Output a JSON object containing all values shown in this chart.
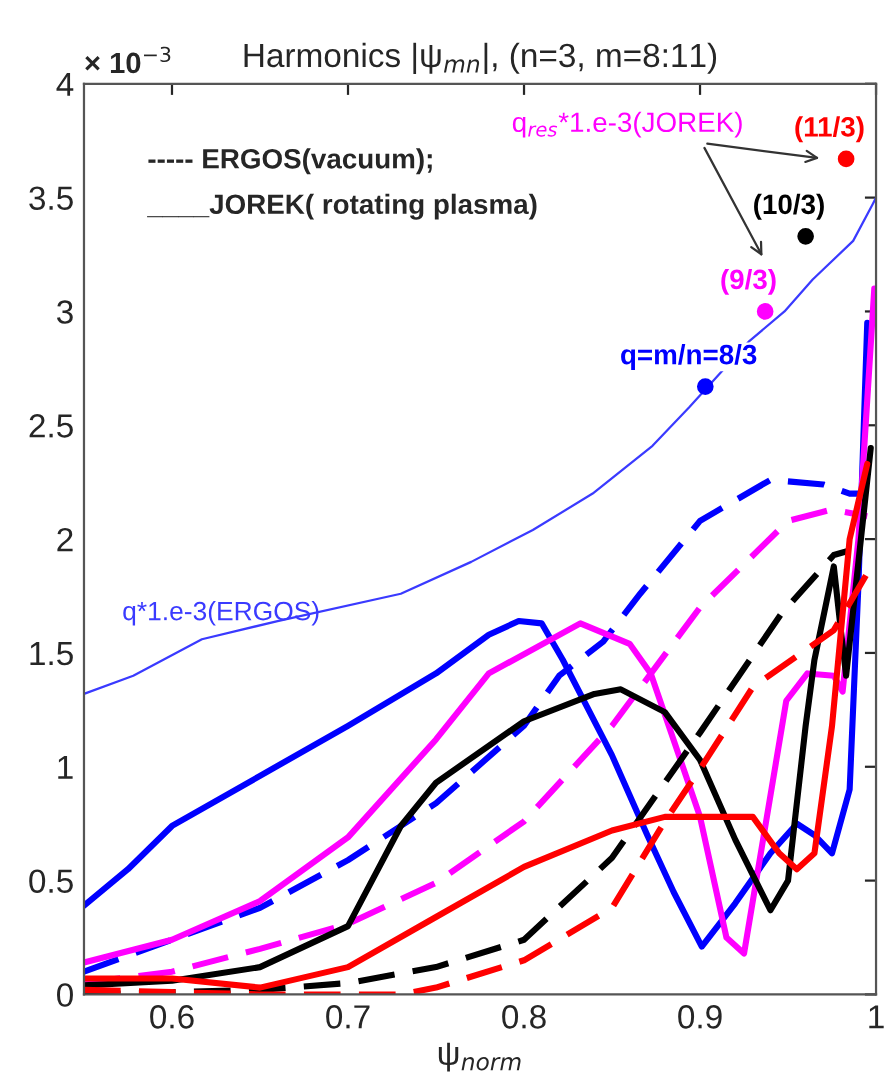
{
  "chart_data": {
    "type": "line",
    "title": "Harmonics |ψ$_{mn}$|, (n=3, m=8:11)",
    "xlabel": "ψ$_{norm}$",
    "xlim": [
      0.55,
      1.0
    ],
    "xticks": [
      0.6,
      0.7,
      0.8,
      0.9,
      {
        "value": 1.0,
        "label": "1"
      }
    ],
    "ylim": [
      0,
      4
    ],
    "yticks": [
      0,
      0.5,
      1,
      1.5,
      2,
      2.5,
      3,
      3.5,
      4
    ],
    "grid": false,
    "legend": false,
    "annotations": [
      "× 10$^{−3}$",
      "----- ERGOS(vacuum);",
      "____JOREK( rotating plasma)",
      "q$_{res}$*1.e-3(JOREK)"
    ],
    "series": [
      {
        "name": "q*1.e-3(ERGOS)",
        "color": "#3a3aff",
        "line_style": "solid",
        "x": [
          0.55,
          0.578,
          0.617,
          0.66,
          0.73,
          0.77,
          0.805,
          0.839,
          0.873,
          0.894,
          0.928,
          0.948,
          0.964,
          0.987,
          0.998,
          1.0
        ],
        "values": [
          1.32,
          1.4,
          1.56,
          1.64,
          1.76,
          1.9,
          2.04,
          2.2,
          2.41,
          2.58,
          2.87,
          3.0,
          3.14,
          3.31,
          3.47,
          3.5
        ]
      },
      {
        "color": "#0000ff",
        "line_style": "solid",
        "x": [
          0.55,
          0.575,
          0.6,
          0.65,
          0.7,
          0.75,
          0.78,
          0.797,
          0.81,
          0.822,
          0.85,
          0.87,
          0.885,
          0.901,
          0.92,
          0.94,
          0.955,
          0.965,
          0.975,
          0.985,
          0.99,
          0.995
        ],
        "values": [
          0.39,
          0.55,
          0.74,
          0.96,
          1.18,
          1.41,
          1.58,
          1.64,
          1.63,
          1.47,
          1.05,
          0.7,
          0.45,
          0.21,
          0.4,
          0.62,
          0.75,
          0.7,
          0.62,
          0.9,
          1.8,
          2.95
        ]
      },
      {
        "color": "#0000ff",
        "line_style": "dashed",
        "x": [
          0.55,
          0.6,
          0.65,
          0.7,
          0.75,
          0.8,
          0.82,
          0.845,
          0.866,
          0.9,
          0.94,
          0.97,
          0.985,
          0.99
        ],
        "values": [
          0.1,
          0.24,
          0.38,
          0.59,
          0.84,
          1.18,
          1.4,
          1.55,
          1.76,
          2.08,
          2.26,
          2.24,
          2.2,
          2.2
        ]
      },
      {
        "color": "#ff00ff",
        "line_style": "solid",
        "x": [
          0.55,
          0.6,
          0.65,
          0.7,
          0.75,
          0.78,
          0.832,
          0.86,
          0.872,
          0.9,
          0.915,
          0.925,
          0.949,
          0.961,
          0.976,
          0.981,
          0.99,
          0.999
        ],
        "values": [
          0.14,
          0.24,
          0.41,
          0.69,
          1.12,
          1.41,
          1.63,
          1.54,
          1.41,
          0.78,
          0.25,
          0.18,
          1.29,
          1.41,
          1.4,
          1.33,
          2.0,
          3.1
        ]
      },
      {
        "color": "#ff00ff",
        "line_style": "dashed",
        "x": [
          0.55,
          0.6,
          0.65,
          0.7,
          0.75,
          0.8,
          0.85,
          0.9,
          0.95,
          0.975,
          0.995
        ],
        "values": [
          0.05,
          0.1,
          0.2,
          0.31,
          0.49,
          0.76,
          1.18,
          1.7,
          2.08,
          2.13,
          2.1
        ]
      },
      {
        "color": "#000000",
        "line_style": "solid",
        "x": [
          0.55,
          0.6,
          0.65,
          0.7,
          0.73,
          0.75,
          0.8,
          0.84,
          0.855,
          0.88,
          0.9,
          0.92,
          0.94,
          0.95,
          0.96,
          0.965,
          0.976,
          0.98,
          0.983,
          0.99,
          0.997
        ],
        "values": [
          0.04,
          0.06,
          0.12,
          0.3,
          0.74,
          0.93,
          1.2,
          1.32,
          1.34,
          1.24,
          1.03,
          0.68,
          0.37,
          0.5,
          1.18,
          1.47,
          1.88,
          1.6,
          1.4,
          1.9,
          2.4
        ]
      },
      {
        "color": "#000000",
        "line_style": "dashed",
        "x": [
          0.55,
          0.65,
          0.7,
          0.75,
          0.8,
          0.85,
          0.9,
          0.946,
          0.976,
          0.985
        ],
        "values": [
          0.0,
          0.02,
          0.05,
          0.12,
          0.24,
          0.6,
          1.15,
          1.67,
          1.93,
          1.95
        ]
      },
      {
        "color": "#ff0000",
        "line_style": "solid",
        "x": [
          0.55,
          0.6,
          0.65,
          0.7,
          0.75,
          0.8,
          0.85,
          0.88,
          0.93,
          0.945,
          0.955,
          0.965,
          0.975,
          0.985,
          0.995
        ],
        "values": [
          0.07,
          0.07,
          0.03,
          0.12,
          0.34,
          0.56,
          0.72,
          0.78,
          0.78,
          0.62,
          0.55,
          0.62,
          1.18,
          2.0,
          2.33
        ]
      },
      {
        "color": "#ff0000",
        "line_style": "dashed",
        "x": [
          0.55,
          0.6,
          0.65,
          0.73,
          0.75,
          0.8,
          0.85,
          0.88,
          0.9,
          0.93,
          0.976,
          0.995
        ],
        "values": [
          0.02,
          0.01,
          0.0,
          0.0,
          0.03,
          0.15,
          0.38,
          0.76,
          0.99,
          1.35,
          1.6,
          1.85
        ]
      },
      {
        "type": "scatter",
        "marker": "circle",
        "x": [
          0.903,
          0.937,
          0.96,
          0.983
        ],
        "values": [
          2.67,
          3.0,
          3.33,
          3.67
        ],
        "colors": [
          "#0000ff",
          "#ff00ff",
          "#000000",
          "#ff0000"
        ],
        "value_labels": [
          "q=m/n=8/3",
          "(9/3)",
          "(10/3)",
          "(11/3)"
        ]
      }
    ]
  }
}
